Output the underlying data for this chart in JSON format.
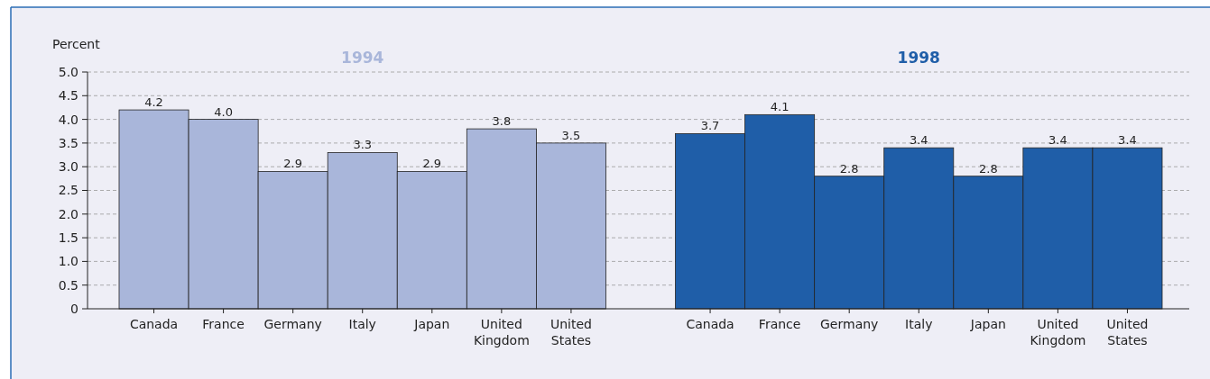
{
  "chart_data": {
    "type": "bar",
    "ylabel": "Percent",
    "categories": [
      "Canada",
      "France",
      "Germany",
      "Italy",
      "Japan",
      "United Kingdom",
      "United States",
      null,
      "Canada",
      "France",
      "Germany",
      "Italy",
      "Japan",
      "United Kingdom",
      "United States"
    ],
    "series": [
      {
        "name": "1994",
        "color": "#a9b6da",
        "values": [
          4.2,
          4.0,
          2.9,
          3.3,
          2.9,
          3.8,
          3.5,
          null,
          null,
          null,
          null,
          null,
          null,
          null,
          null
        ],
        "value_labels": [
          "4.2",
          "4.0",
          "2.9",
          "3.3",
          "2.9",
          "3.8",
          "3.5",
          null,
          null,
          null,
          null,
          null,
          null,
          null,
          null
        ]
      },
      {
        "name": "1998",
        "color": "#1f5ea8",
        "values": [
          null,
          null,
          null,
          null,
          null,
          null,
          null,
          null,
          3.7,
          4.1,
          2.8,
          3.4,
          2.8,
          3.4,
          3.4
        ],
        "value_labels": [
          null,
          null,
          null,
          null,
          null,
          null,
          null,
          null,
          "3.7",
          "4.1",
          "2.8",
          "3.4",
          "2.8",
          "3.4",
          "3.4"
        ]
      }
    ],
    "ylim": [
      0,
      5
    ],
    "yticks": [
      0,
      {
        "value": 0.5,
        "label": "0.5"
      },
      {
        "value": 1,
        "label": "1.0"
      },
      {
        "value": 1.5,
        "label": "1.5"
      },
      {
        "value": 2,
        "label": "2.0"
      },
      {
        "value": 2.5,
        "label": "2.5"
      },
      {
        "value": 3,
        "label": "3.0"
      },
      {
        "value": 3.5,
        "label": "3.5"
      },
      {
        "value": 4,
        "label": "4.0"
      },
      {
        "value": 4.5,
        "label": "4.5"
      },
      {
        "value": 5,
        "label": "5.0"
      }
    ],
    "grid": "y"
  }
}
